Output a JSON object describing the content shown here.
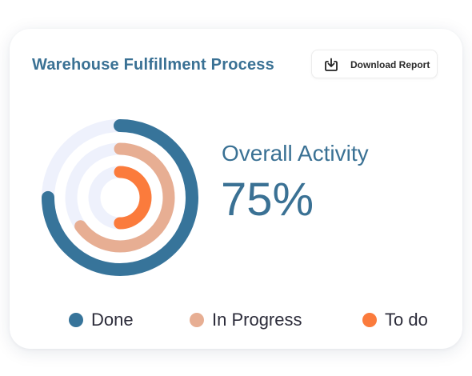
{
  "card": {
    "title": "Warehouse Fulfillment Process",
    "download_button": {
      "label": "Download Report",
      "icon": "download-icon"
    }
  },
  "activity": {
    "label": "Overall Activity",
    "value": "75%"
  },
  "colors": {
    "done": "#37749a",
    "in_progress": "#e7ae93",
    "to_do": "#fb7b3c",
    "track": "#eef1fc",
    "accent": "#3a7194"
  },
  "chart_data": {
    "type": "radial-bar",
    "series": [
      {
        "name": "Done",
        "value": 75,
        "color": "#37749a"
      },
      {
        "name": "In Progress",
        "value": 65,
        "color": "#e7ae93"
      },
      {
        "name": "To do",
        "value": 50,
        "color": "#fb7b3c"
      }
    ],
    "ylim": [
      0,
      100
    ],
    "legend_position": "bottom"
  },
  "legend": [
    {
      "label": "Done",
      "color": "#37749a"
    },
    {
      "label": "In Progress",
      "color": "#e7ae93"
    },
    {
      "label": "To do",
      "color": "#fb7b3c"
    }
  ]
}
